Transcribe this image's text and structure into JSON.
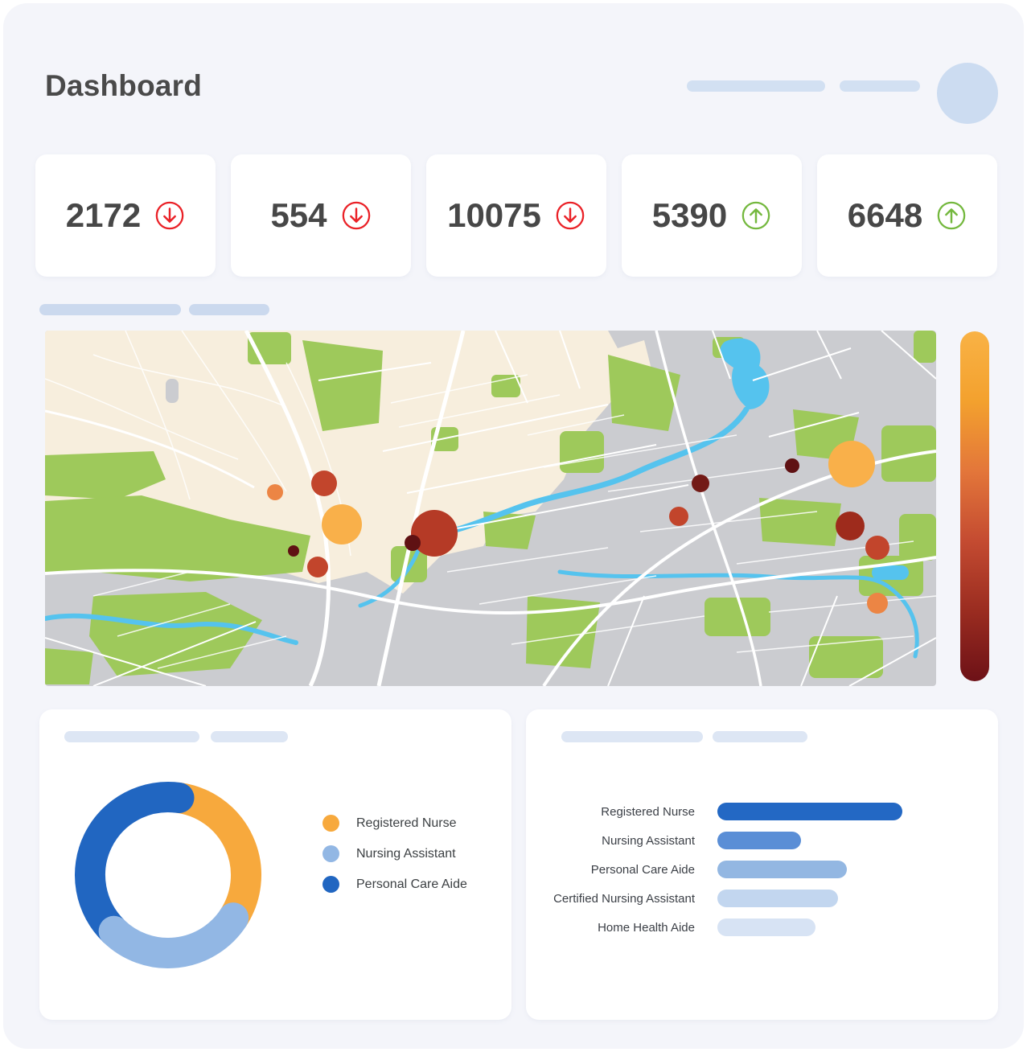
{
  "header": {
    "title": "Dashboard"
  },
  "stats": [
    {
      "value": "2172",
      "trend": "down"
    },
    {
      "value": "554",
      "trend": "down"
    },
    {
      "value": "10075",
      "trend": "down"
    },
    {
      "value": "5390",
      "trend": "up"
    },
    {
      "value": "6648",
      "trend": "up"
    }
  ],
  "theme": {
    "panel_bg": "#f4f5fa",
    "card_bg": "#ffffff",
    "skeleton_color": "#d2e0f2",
    "title_color": "#4a4a4a",
    "number_color": "#474747",
    "down_color": "#ea2127",
    "up_color": "#74b83e",
    "text_color": "#3c4043"
  },
  "chart_data": [
    {
      "type": "pie",
      "title": "Staff share donut",
      "donut": true,
      "legend_position": "right",
      "labels": [
        "Registered Nurse",
        "Nursing Assistant",
        "Personal Care Aide"
      ],
      "values": [
        32,
        28,
        40
      ],
      "colors": [
        "#f7a93d",
        "#92b7e4",
        "#2166c1"
      ],
      "start_angle_deg": 8
    },
    {
      "type": "bar",
      "title": "Staff counts by role",
      "orientation": "horizontal",
      "categories": [
        "Registered Nurse",
        "Nursing Assistant",
        "Personal Care Aide",
        "Certified Nursing Assistant",
        "Home Health Aide"
      ],
      "values": [
        100,
        45,
        70,
        65,
        53
      ],
      "value_unit": "percent_of_longest_bar",
      "colors": [
        "#2368c4",
        "#5a8ed6",
        "#93b7e2",
        "#c2d6ef",
        "#d7e3f4"
      ],
      "xlim": [
        0,
        100
      ],
      "grid": false
    },
    {
      "type": "scatter",
      "title": "Map bubble overlay (heat bubbles)",
      "x_range": [
        0,
        1108
      ],
      "y_range": [
        0,
        442
      ],
      "points": [
        {
          "x": 286,
          "y": 201,
          "r": 10,
          "color": "#ec8544"
        },
        {
          "x": 347,
          "y": 190,
          "r": 16,
          "color": "#c2452c"
        },
        {
          "x": 369,
          "y": 241,
          "r": 25,
          "color": "#f9b04a"
        },
        {
          "x": 309,
          "y": 274,
          "r": 7,
          "color": "#5f1113"
        },
        {
          "x": 339,
          "y": 294,
          "r": 13,
          "color": "#c2452c"
        },
        {
          "x": 484,
          "y": 252,
          "r": 29,
          "color": "#b53a26"
        },
        {
          "x": 457,
          "y": 264,
          "r": 10,
          "color": "#5f1113"
        },
        {
          "x": 815,
          "y": 190,
          "r": 11,
          "color": "#731a16"
        },
        {
          "x": 788,
          "y": 231,
          "r": 12,
          "color": "#c2452c"
        },
        {
          "x": 929,
          "y": 168,
          "r": 9,
          "color": "#5f1113"
        },
        {
          "x": 1003,
          "y": 166,
          "r": 29,
          "color": "#f9b04a"
        },
        {
          "x": 1001,
          "y": 243,
          "r": 18,
          "color": "#9e2b1c"
        },
        {
          "x": 1035,
          "y": 270,
          "r": 15,
          "color": "#c2452c"
        },
        {
          "x": 1035,
          "y": 339,
          "r": 13,
          "color": "#ec8544"
        }
      ],
      "colorbar_stops": [
        "#f9b245",
        "#f3a12e",
        "#e3763a",
        "#c44b31",
        "#9a2c20",
        "#6d1117"
      ]
    }
  ]
}
